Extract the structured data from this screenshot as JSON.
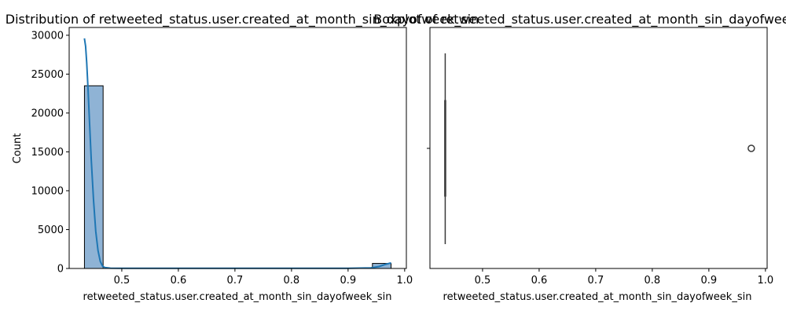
{
  "chart_data": [
    {
      "type": "bar",
      "subtype": "histogram-with-kde",
      "title": "Distribution of retweeted_status.user.created_at_month_sin_dayofweek_sin",
      "xlabel": "retweeted_status.user.created_at_month_sin_dayofweek_sin",
      "ylabel": "Count",
      "xlim": [
        0.407,
        1.003
      ],
      "ylim": [
        0,
        31000
      ],
      "x_ticks": [
        "0.5",
        "0.6",
        "0.7",
        "0.8",
        "0.9",
        "1.0"
      ],
      "y_ticks": [
        "0",
        "5000",
        "10000",
        "15000",
        "20000",
        "25000",
        "30000"
      ],
      "bars": [
        {
          "x0": 0.434,
          "x1": 0.467,
          "count": 23500
        },
        {
          "x0": 0.467,
          "x1": 0.5,
          "count": 0
        },
        {
          "x0": 0.5,
          "x1": 0.533,
          "count": 0
        },
        {
          "x0": 0.533,
          "x1": 0.566,
          "count": 0
        },
        {
          "x0": 0.566,
          "x1": 0.6,
          "count": 0
        },
        {
          "x0": 0.6,
          "x1": 0.633,
          "count": 0
        },
        {
          "x0": 0.633,
          "x1": 0.666,
          "count": 0
        },
        {
          "x0": 0.666,
          "x1": 0.699,
          "count": 0
        },
        {
          "x0": 0.699,
          "x1": 0.732,
          "count": 0
        },
        {
          "x0": 0.732,
          "x1": 0.765,
          "count": 0
        },
        {
          "x0": 0.765,
          "x1": 0.798,
          "count": 0
        },
        {
          "x0": 0.798,
          "x1": 0.831,
          "count": 0
        },
        {
          "x0": 0.831,
          "x1": 0.864,
          "count": 0
        },
        {
          "x0": 0.864,
          "x1": 0.897,
          "count": 0
        },
        {
          "x0": 0.897,
          "x1": 0.93,
          "count": 0
        },
        {
          "x0": 0.93,
          "x1": 0.943,
          "count": 0
        },
        {
          "x0": 0.943,
          "x1": 0.976,
          "count": 650
        }
      ],
      "kde": {
        "x": [
          0.434,
          0.436,
          0.438,
          0.44,
          0.443,
          0.446,
          0.45,
          0.454,
          0.458,
          0.462,
          0.466,
          0.47,
          0.48,
          0.5,
          0.6,
          0.7,
          0.8,
          0.9,
          0.94,
          0.955,
          0.965,
          0.976
        ],
        "y": [
          29600,
          28600,
          26500,
          23500,
          18800,
          14000,
          8800,
          4800,
          2300,
          900,
          300,
          120,
          40,
          20,
          20,
          20,
          20,
          25,
          80,
          250,
          500,
          720
        ]
      },
      "bar_color": "#8fb3d5",
      "line_color": "#1f77b4",
      "grid": false
    },
    {
      "type": "boxplot",
      "title": "Boxplot of retweeted_status.user.created_at_month_sin_dayofweek_sin",
      "xlabel": "retweeted_status.user.created_at_month_sin_dayofweek_sin",
      "xlim": [
        0.407,
        1.003
      ],
      "x_ticks": [
        "0.5",
        "0.6",
        "0.7",
        "0.8",
        "0.9",
        "1.0"
      ],
      "box": {
        "whisker_low": 0.434,
        "q1": 0.434,
        "median": 0.434,
        "q3": 0.434,
        "whisker_high": 0.434
      },
      "outliers": [
        0.975
      ],
      "box_color": "#1f77b4",
      "grid": false
    }
  ]
}
